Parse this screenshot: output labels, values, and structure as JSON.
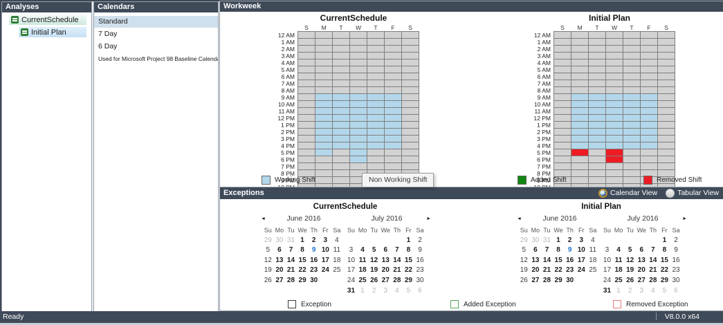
{
  "analyses": {
    "title": "Analyses",
    "items": [
      {
        "label": "CurrentSchedule",
        "indent": 0,
        "highlight": "teal",
        "icon": "project-icon"
      },
      {
        "label": "Initial Plan",
        "indent": 1,
        "highlight": "blue",
        "icon": "project-icon"
      }
    ]
  },
  "calendars": {
    "title": "Calendars",
    "items": [
      {
        "label": "Standard",
        "selected": true
      },
      {
        "label": "7 Day",
        "selected": false
      },
      {
        "label": "6 Day",
        "selected": false
      },
      {
        "label": "Used for Microsoft Project 98 Baseline Calendar",
        "selected": false
      }
    ]
  },
  "workweek": {
    "title": "Workweek",
    "day_headers": [
      "S",
      "M",
      "T",
      "W",
      "T",
      "F",
      "S"
    ],
    "hours": [
      "12 AM",
      "1 AM",
      "2 AM",
      "3 AM",
      "4 AM",
      "5 AM",
      "6 AM",
      "7 AM",
      "8 AM",
      "9 AM",
      "10 AM",
      "11 AM",
      "12 PM",
      "1 PM",
      "2 PM",
      "3 PM",
      "4 PM",
      "5 PM",
      "6 PM",
      "7 PM",
      "8 PM",
      "9 PM",
      "10 PM",
      "11 PM"
    ],
    "grids": [
      {
        "title": "CurrentSchedule",
        "shifts": [
          {
            "day": 1,
            "from": 9,
            "to": 17,
            "type": "working"
          },
          {
            "day": 2,
            "from": 9,
            "to": 16,
            "type": "working"
          },
          {
            "day": 3,
            "from": 9,
            "to": 18,
            "type": "working"
          },
          {
            "day": 4,
            "from": 9,
            "to": 16,
            "type": "working"
          },
          {
            "day": 5,
            "from": 9,
            "to": 16,
            "type": "working"
          }
        ]
      },
      {
        "title": "Initial Plan",
        "shifts": [
          {
            "day": 1,
            "from": 9,
            "to": 16,
            "type": "working"
          },
          {
            "day": 2,
            "from": 9,
            "to": 16,
            "type": "working"
          },
          {
            "day": 3,
            "from": 9,
            "to": 16,
            "type": "working"
          },
          {
            "day": 4,
            "from": 9,
            "to": 16,
            "type": "working"
          },
          {
            "day": 5,
            "from": 9,
            "to": 16,
            "type": "working"
          },
          {
            "day": 1,
            "from": 17,
            "to": 17,
            "type": "removed"
          },
          {
            "day": 3,
            "from": 17,
            "to": 18,
            "type": "removed"
          }
        ]
      }
    ],
    "legend": {
      "working": {
        "label": "Working Shift",
        "color": "#b3d7ea"
      },
      "nonworking": {
        "label": "Non Working Shift",
        "color": "#d2d2d2"
      },
      "added": {
        "label": "Added Shift",
        "color": "#128712"
      },
      "removed": {
        "label": "Removed Shift",
        "color": "#ed1c24"
      }
    },
    "tooltip": "Non Working Shift"
  },
  "exceptions": {
    "title": "Exceptions",
    "view_options": [
      {
        "label": "Calendar View",
        "selected": true
      },
      {
        "label": "Tabular View",
        "selected": false
      }
    ],
    "nav": {
      "prev": "◄",
      "next": "►"
    },
    "day_names": [
      "Su",
      "Mo",
      "Tu",
      "We",
      "Th",
      "Fr",
      "Sa"
    ],
    "groups": [
      {
        "title": "CurrentSchedule"
      },
      {
        "title": "Initial Plan"
      }
    ],
    "months": [
      {
        "name": "June 2016",
        "weeks": [
          [
            "29g",
            "30g",
            "31g",
            "1b",
            "2b",
            "3b",
            "4"
          ],
          [
            "5",
            "6b",
            "7b",
            "8b",
            "9t",
            "10b",
            "11"
          ],
          [
            "12",
            "13b",
            "14b",
            "15b",
            "16b",
            "17b",
            "18"
          ],
          [
            "19",
            "20b",
            "21b",
            "22b",
            "23b",
            "24b",
            "25"
          ],
          [
            "26",
            "27b",
            "28b",
            "29b",
            "30b",
            "",
            ""
          ],
          [
            "",
            "",
            "",
            "",
            "",
            "",
            ""
          ]
        ]
      },
      {
        "name": "July 2016",
        "weeks": [
          [
            "",
            "",
            "",
            "",
            "",
            "1b",
            "2"
          ],
          [
            "3",
            "4b",
            "5b",
            "6b",
            "7b",
            "8b",
            "9"
          ],
          [
            "10",
            "11b",
            "12b",
            "13b",
            "14b",
            "15b",
            "16"
          ],
          [
            "17",
            "18b",
            "19b",
            "20b",
            "21b",
            "22b",
            "23"
          ],
          [
            "24",
            "25b",
            "26b",
            "27b",
            "28b",
            "29b",
            "30"
          ],
          [
            "31b",
            "1g",
            "2g",
            "3g",
            "4g",
            "5g",
            "6g"
          ]
        ]
      }
    ],
    "legend": {
      "exception": {
        "label": "Exception",
        "border": "#3c3c3c"
      },
      "added": {
        "label": "Added Exception",
        "border": "#56a456"
      },
      "removed": {
        "label": "Removed Exception",
        "border": "#e57b7b"
      }
    }
  },
  "statusbar": {
    "status": "Ready",
    "version": "V8.0.0 x64"
  }
}
